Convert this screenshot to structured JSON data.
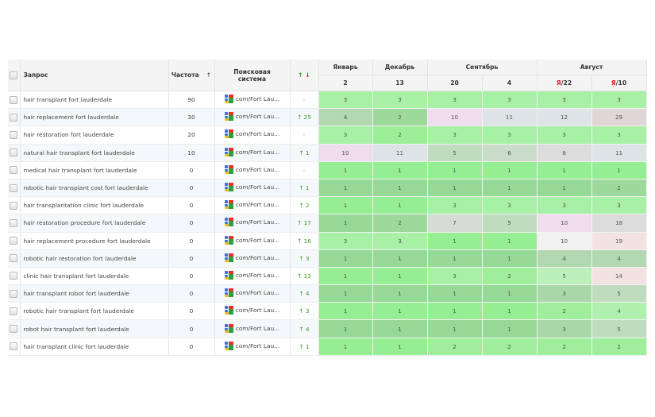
{
  "header": {
    "query": "Запрос",
    "frequency": "Частота",
    "frequency_sort": "↑",
    "engine_line1": "Поисковая",
    "engine_line2": "система",
    "change_up": "↑",
    "change_down": "↓",
    "months": [
      {
        "label": "Январь",
        "span": 1
      },
      {
        "label": "Декабрь",
        "span": 1
      },
      {
        "label": "Сентябрь",
        "span": 2
      },
      {
        "label": "Август",
        "span": 2
      }
    ],
    "dates": [
      {
        "prefix": "",
        "day": "2"
      },
      {
        "prefix": "",
        "day": "13"
      },
      {
        "prefix": "",
        "day": "20"
      },
      {
        "prefix": "",
        "day": "4"
      },
      {
        "prefix": "Я",
        "day": "/22"
      },
      {
        "prefix": "Я",
        "day": "/10"
      }
    ]
  },
  "engine_label": "com/Fort Lau...",
  "engine_icon": "google-icon",
  "colors": {
    "green_best": "#98ee96",
    "green_light": "#a8f0a6",
    "green_mid": "#9ad99a",
    "green_dim": "#b5d9b4",
    "grey_green": "#c9dcc9",
    "grey_blue": "#dde4e5",
    "grey": "#dcdcdc",
    "pink": "#efdcef",
    "rose": "#e1d6d6",
    "rose_light": "#f2e2e2",
    "white_grey": "#f1f1f1",
    "up_arrow": "#2a9a16",
    "down_arrow": "#e02020"
  },
  "rows": [
    {
      "query": "hair transplant fort lauderdale",
      "freq": "90",
      "change": "-",
      "dir": "none",
      "pos": [
        "3",
        "3",
        "3",
        "3",
        "3",
        "3"
      ],
      "bg": [
        "#a8f0a6",
        "#a8f0a6",
        "#a8f0a6",
        "#a8f0a6",
        "#a8f0a6",
        "#a8f0a6"
      ]
    },
    {
      "query": "hair replacement fort lauderdale",
      "freq": "30",
      "change": "25",
      "dir": "up",
      "pos": [
        "4",
        "2",
        "10",
        "11",
        "12",
        "29"
      ],
      "bg": [
        "#b2d8b1",
        "#9ed99c",
        "#efdcef",
        "#dde4e5",
        "#dde4e5",
        "#e1d6d6"
      ]
    },
    {
      "query": "hair restoration fort lauderdale",
      "freq": "20",
      "change": "-",
      "dir": "none",
      "pos": [
        "3",
        "2",
        "3",
        "3",
        "3",
        "3"
      ],
      "bg": [
        "#a8f0a6",
        "#9cee99",
        "#a8f0a6",
        "#a8f0a6",
        "#a8f0a6",
        "#a8f0a6"
      ]
    },
    {
      "query": "natural hair transplant fort lauderdale",
      "freq": "10",
      "change": "1",
      "dir": "up",
      "pos": [
        "10",
        "11",
        "5",
        "6",
        "8",
        "11"
      ],
      "bg": [
        "#efdcef",
        "#dde4e5",
        "#c0dcbf",
        "#c9dcc9",
        "#dcdcdc",
        "#dde4e5"
      ]
    },
    {
      "query": "medical hair transplant fort lauderdale",
      "freq": "0",
      "change": "-",
      "dir": "none",
      "pos": [
        "1",
        "1",
        "1",
        "1",
        "1",
        "1"
      ],
      "bg": [
        "#96ee94",
        "#96ee94",
        "#96ee94",
        "#96ee94",
        "#96ee94",
        "#96ee94"
      ]
    },
    {
      "query": "robotic hair transplant cost fort lauderdale",
      "freq": "0",
      "change": "1",
      "dir": "up",
      "pos": [
        "1",
        "1",
        "1",
        "1",
        "1",
        "2"
      ],
      "bg": [
        "#96d896",
        "#96d896",
        "#96d896",
        "#96d896",
        "#96d896",
        "#9ed99c"
      ]
    },
    {
      "query": "hair transplantation clinic fort lauderdale",
      "freq": "0",
      "change": "2",
      "dir": "up",
      "pos": [
        "1",
        "1",
        "3",
        "3",
        "3",
        "3"
      ],
      "bg": [
        "#96ee94",
        "#96ee94",
        "#a8f0a6",
        "#a8f0a6",
        "#a8f0a6",
        "#a8f0a6"
      ]
    },
    {
      "query": "hair restoration procedure fort lauderdale",
      "freq": "0",
      "change": "17",
      "dir": "up",
      "pos": [
        "1",
        "2",
        "7",
        "5",
        "10",
        "18"
      ],
      "bg": [
        "#96d896",
        "#9ed99c",
        "#d5dcd4",
        "#c0dcbf",
        "#efdcef",
        "#dcdcdc"
      ]
    },
    {
      "query": "hair replacement procedure fort lauderdale",
      "freq": "0",
      "change": "16",
      "dir": "up",
      "pos": [
        "3",
        "3",
        "1",
        "1",
        "10",
        "19"
      ],
      "bg": [
        "#a8f0a6",
        "#a8f0a6",
        "#96ee94",
        "#96ee94",
        "#f1f1f1",
        "#f2e2e2"
      ]
    },
    {
      "query": "robotic hair restoration fort lauderdale",
      "freq": "0",
      "change": "3",
      "dir": "up",
      "pos": [
        "1",
        "1",
        "1",
        "1",
        "4",
        "4"
      ],
      "bg": [
        "#96d896",
        "#96d896",
        "#96d896",
        "#96d896",
        "#b2d8b1",
        "#b2d8b1"
      ]
    },
    {
      "query": "clinic hair transplant fort lauderdale",
      "freq": "0",
      "change": "13",
      "dir": "up",
      "pos": [
        "1",
        "1",
        "3",
        "2",
        "5",
        "14"
      ],
      "bg": [
        "#96ee94",
        "#96ee94",
        "#a8f0a6",
        "#9eee9c",
        "#bbf0ba",
        "#f2e2e2"
      ]
    },
    {
      "query": "hair transplant robot fort lauderdale",
      "freq": "0",
      "change": "4",
      "dir": "up",
      "pos": [
        "1",
        "1",
        "1",
        "1",
        "3",
        "5"
      ],
      "bg": [
        "#96d896",
        "#96d896",
        "#96d896",
        "#96d896",
        "#a8d8a7",
        "#c0dcbf"
      ]
    },
    {
      "query": "robotic hair transplant fort lauderdale",
      "freq": "0",
      "change": "3",
      "dir": "up",
      "pos": [
        "1",
        "1",
        "1",
        "1",
        "2",
        "4"
      ],
      "bg": [
        "#96ee94",
        "#96ee94",
        "#96ee94",
        "#96ee94",
        "#9eee9c",
        "#b0f0ae"
      ]
    },
    {
      "query": "robot hair transplant fort lauderdale",
      "freq": "0",
      "change": "4",
      "dir": "up",
      "pos": [
        "1",
        "1",
        "1",
        "1",
        "3",
        "5"
      ],
      "bg": [
        "#96d896",
        "#96d896",
        "#96d896",
        "#96d896",
        "#a8d8a7",
        "#c0dcbf"
      ]
    },
    {
      "query": "hair transplant clinic fort lauderdale",
      "freq": "0",
      "change": "1",
      "dir": "up",
      "pos": [
        "1",
        "1",
        "2",
        "2",
        "2",
        "2"
      ],
      "bg": [
        "#96ee94",
        "#96ee94",
        "#9eee9c",
        "#9eee9c",
        "#9eee9c",
        "#9eee9c"
      ]
    }
  ]
}
